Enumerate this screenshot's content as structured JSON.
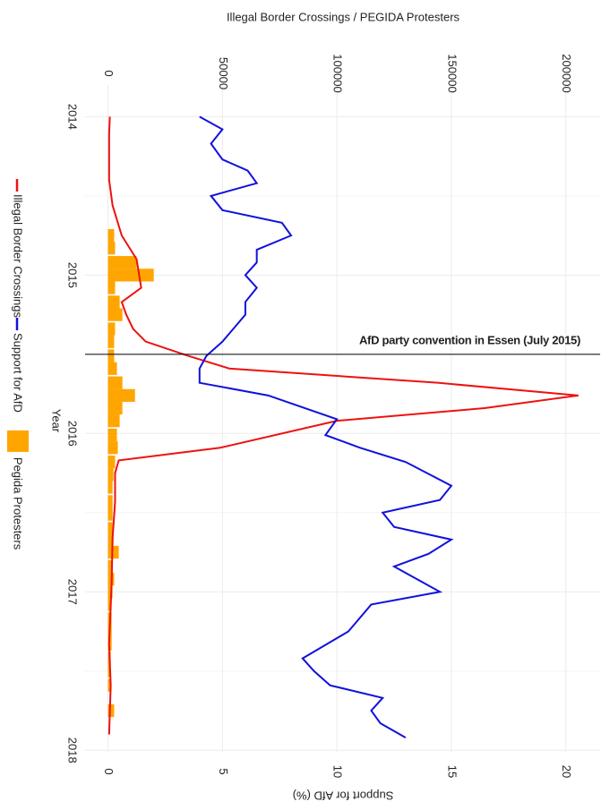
{
  "chart_data": {
    "type": "line",
    "title": "Illegal Border Crossings / PEGIDA Protesters",
    "x_label": "Year",
    "y2_label": "Support for AfD (%)",
    "xlim": [
      2013.8,
      2018.01
    ],
    "xticks": [
      2014,
      2015,
      2016,
      2017,
      2018
    ],
    "ylim": [
      -10000,
      215000
    ],
    "yticks": [
      0,
      50000,
      100000,
      150000,
      200000
    ],
    "y2lim": [
      -1,
      21.5
    ],
    "y2ticks": [
      0,
      5,
      10,
      15,
      20
    ],
    "grid": true,
    "legend": "left",
    "annotations": [
      {
        "text": "AfD party convention in Essen (July 2015)",
        "x": 2015.5
      }
    ],
    "series": [
      {
        "name": "Illegal Border Crossings",
        "type": "line",
        "color": "#ee1111",
        "axis": "y",
        "x": [
          2014.0,
          2014.11,
          2014.4,
          2014.56,
          2014.75,
          2014.9,
          2015.08,
          2015.17,
          2015.25,
          2015.34,
          2015.42,
          2015.51,
          2015.59,
          2015.68,
          2015.76,
          2015.84,
          2015.92,
          2016.09,
          2016.17,
          2016.25,
          2016.43,
          2016.66,
          2016.94,
          2017.33,
          2017.59,
          2017.9
        ],
        "values": [
          800,
          500,
          500,
          2000,
          6000,
          12500,
          14500,
          6000,
          8000,
          11000,
          16500,
          35000,
          53000,
          144000,
          205500,
          164500,
          100000,
          49000,
          4700,
          3100,
          3100,
          2000,
          1600,
          500,
          1200,
          500
        ]
      },
      {
        "name": "Support for AfD",
        "type": "line",
        "color": "#1111dd",
        "axis": "y2",
        "x": [
          2014.0,
          2014.08,
          2014.17,
          2014.27,
          2014.34,
          2014.42,
          2014.5,
          2014.59,
          2014.67,
          2014.75,
          2014.84,
          2014.92,
          2015.0,
          2015.08,
          2015.17,
          2015.25,
          2015.42,
          2015.51,
          2015.59,
          2015.68,
          2015.76,
          2015.91,
          2016.01,
          2016.09,
          2016.18,
          2016.33,
          2016.42,
          2016.5,
          2016.59,
          2016.67,
          2016.76,
          2016.84,
          2016.92,
          2017.0,
          2017.08,
          2017.25,
          2017.42,
          2017.5,
          2017.59,
          2017.67,
          2017.75,
          2017.83,
          2017.92
        ],
        "values": [
          4.0,
          5.0,
          4.5,
          5.0,
          6.1,
          6.5,
          4.5,
          5.0,
          7.6,
          8.0,
          6.5,
          6.5,
          6.0,
          6.5,
          6.0,
          6.0,
          5.0,
          4.3,
          4.0,
          4.0,
          7.0,
          10.0,
          9.5,
          11.0,
          13.0,
          15.0,
          14.5,
          12.0,
          12.5,
          15.0,
          14.0,
          12.5,
          13.5,
          14.5,
          11.5,
          10.5,
          8.5,
          9.0,
          9.7,
          12.0,
          11.5,
          11.9,
          13.0
        ]
      },
      {
        "name": "Pegida Protesters",
        "type": "bar",
        "color": "#ffa500",
        "axis": "y",
        "x": [
          2014.75,
          2014.83,
          2014.92,
          2015.0,
          2015.08,
          2015.17,
          2015.25,
          2015.34,
          2015.42,
          2015.51,
          2015.59,
          2015.68,
          2015.76,
          2015.84,
          2015.92,
          2016.01,
          2016.09,
          2016.18,
          2016.26,
          2016.34,
          2016.43,
          2016.51,
          2016.6,
          2016.68,
          2016.75,
          2016.84,
          2016.92,
          2017.0,
          2017.08,
          2017.17,
          2017.25,
          2017.33,
          2017.42,
          2017.5,
          2017.59,
          2017.75
        ],
        "values": [
          2700,
          3100,
          12500,
          20000,
          3100,
          5100,
          6300,
          3100,
          2700,
          2700,
          3900,
          6300,
          11800,
          6300,
          5100,
          3900,
          4300,
          3100,
          2400,
          2000,
          2000,
          2000,
          2000,
          2400,
          4700,
          2000,
          2700,
          2000,
          1600,
          1600,
          1600,
          1600,
          1200,
          800,
          800,
          2700
        ]
      }
    ]
  }
}
